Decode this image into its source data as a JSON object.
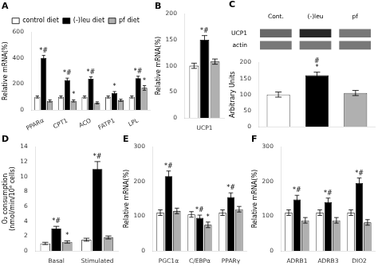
{
  "chart_data": [
    {
      "type": "bar",
      "title": "A",
      "ylabel": "Relative mRNA(%)",
      "categories": [
        "PPARα",
        "CPT1",
        "ACO",
        "FATP1",
        "LPL"
      ],
      "series": [
        {
          "name": "control diet",
          "color": "white",
          "values": [
            100,
            100,
            100,
            100,
            100
          ],
          "errors": [
            8,
            8,
            8,
            8,
            8
          ],
          "sig_labels": [
            null,
            null,
            null,
            null,
            null
          ]
        },
        {
          "name": "(-)leu diet",
          "color": "black",
          "values": [
            400,
            230,
            240,
            130,
            245
          ],
          "errors": [
            20,
            15,
            15,
            12,
            15
          ],
          "sig_labels": [
            "*#",
            "*#",
            "*#",
            "*",
            "*#"
          ]
        },
        {
          "name": "pf diet",
          "color": "#b0b0b0",
          "values": [
            70,
            70,
            55,
            75,
            170
          ],
          "errors": [
            8,
            8,
            8,
            8,
            18
          ],
          "sig_labels": [
            null,
            "*",
            null,
            null,
            "*"
          ]
        }
      ],
      "ylim": [
        0,
        600
      ],
      "yticks": [
        0,
        200,
        400,
        600
      ],
      "grid": false,
      "legend": "top"
    },
    {
      "type": "bar",
      "title": "B",
      "ylabel": "Relative mRNA(%)",
      "categories": [
        "UCP1"
      ],
      "series": [
        {
          "name": "control diet",
          "color": "white",
          "values": [
            100
          ],
          "errors": [
            5
          ],
          "sig_labels": [
            null
          ]
        },
        {
          "name": "(-)leu diet",
          "color": "black",
          "values": [
            150
          ],
          "errors": [
            8
          ],
          "sig_labels": [
            "*#"
          ]
        },
        {
          "name": "pf diet",
          "color": "#b0b0b0",
          "values": [
            108
          ],
          "errors": [
            5
          ],
          "sig_labels": [
            null
          ]
        }
      ],
      "ylim": [
        0,
        200
      ],
      "yticks": [
        0,
        50,
        100,
        150,
        200
      ],
      "grid": false
    },
    {
      "type": "blot",
      "title": "C",
      "categories": [
        "Cont.",
        "(-)leu",
        "pf"
      ],
      "series": [
        {
          "name": "UCP1",
          "colors": [
            "#686868",
            "#282828",
            "#787878"
          ]
        },
        {
          "name": "actin",
          "colors": [
            "#787878",
            "#787878",
            "#787878"
          ]
        }
      ]
    },
    {
      "type": "bar",
      "ylabel": "Arbitrary Units",
      "categories": [
        null,
        null,
        null
      ],
      "values": [
        100,
        160,
        105
      ],
      "errors": [
        8,
        10,
        8
      ],
      "sig_labels": [
        null,
        "#\n*",
        null
      ],
      "colors": [
        "white",
        "black",
        "#b0b0b0"
      ],
      "ylim": [
        0,
        200
      ],
      "yticks": [
        0,
        50,
        100,
        150,
        200
      ],
      "grid": false,
      "tick_labels": "y"
    },
    {
      "type": "bar",
      "title": "D",
      "ylabel": "O₂ consumption\n(nmol/min/10⁶ cells)",
      "categories": [
        "Basal",
        "Stimulated"
      ],
      "series": [
        {
          "name": "control diet",
          "color": "white",
          "values": [
            1.0,
            1.5
          ],
          "errors": [
            0.15,
            0.2
          ],
          "sig_labels": [
            null,
            null
          ]
        },
        {
          "name": "(-)leu diet",
          "color": "black",
          "values": [
            3.0,
            11.0
          ],
          "errors": [
            0.3,
            1.0
          ],
          "sig_labels": [
            "*#",
            "*#"
          ]
        },
        {
          "name": "pf diet",
          "color": "#b0b0b0",
          "values": [
            1.2,
            1.8
          ],
          "errors": [
            0.15,
            0.2
          ],
          "sig_labels": [
            "*",
            null
          ]
        }
      ],
      "ylim": [
        0,
        14
      ],
      "yticks": [
        0,
        2,
        4,
        6,
        8,
        10,
        12,
        14
      ],
      "grid": false
    },
    {
      "type": "bar",
      "title": "E",
      "ylabel": "Relative mRNA(%)",
      "categories": [
        "PGC1α",
        "C/EBPα",
        "PPARγ"
      ],
      "series": [
        {
          "name": "control diet",
          "color": "white",
          "values": [
            110,
            105,
            110
          ],
          "errors": [
            8,
            8,
            8
          ],
          "sig_labels": [
            null,
            null,
            null
          ]
        },
        {
          "name": "(-)leu diet",
          "color": "black",
          "values": [
            215,
            95,
            155
          ],
          "errors": [
            15,
            8,
            12
          ],
          "sig_labels": [
            "*#",
            "*#",
            "*#"
          ]
        },
        {
          "name": "pf diet",
          "color": "#b0b0b0",
          "values": [
            115,
            75,
            120
          ],
          "errors": [
            8,
            8,
            8
          ],
          "sig_labels": [
            null,
            "*",
            null
          ]
        }
      ],
      "ylim": [
        0,
        300
      ],
      "yticks": [
        0,
        100,
        200,
        300
      ],
      "grid": false
    },
    {
      "type": "bar",
      "title": "F",
      "ylabel": "Relative mRNA(%)",
      "categories": [
        "ADRB1",
        "ADRB3",
        "DIO2"
      ],
      "series": [
        {
          "name": "control diet",
          "color": "white",
          "values": [
            110,
            110,
            110
          ],
          "errors": [
            8,
            8,
            8
          ],
          "sig_labels": [
            null,
            null,
            null
          ]
        },
        {
          "name": "(-)leu diet",
          "color": "black",
          "values": [
            148,
            140,
            195
          ],
          "errors": [
            12,
            12,
            15
          ],
          "sig_labels": [
            "*#",
            "*#",
            "*#"
          ]
        },
        {
          "name": "pf diet",
          "color": "#b0b0b0",
          "values": [
            88,
            88,
            82
          ],
          "errors": [
            8,
            8,
            8
          ],
          "sig_labels": [
            null,
            null,
            null
          ]
        }
      ],
      "ylim": [
        0,
        300
      ],
      "yticks": [
        0,
        100,
        200,
        300
      ],
      "grid": false
    }
  ]
}
